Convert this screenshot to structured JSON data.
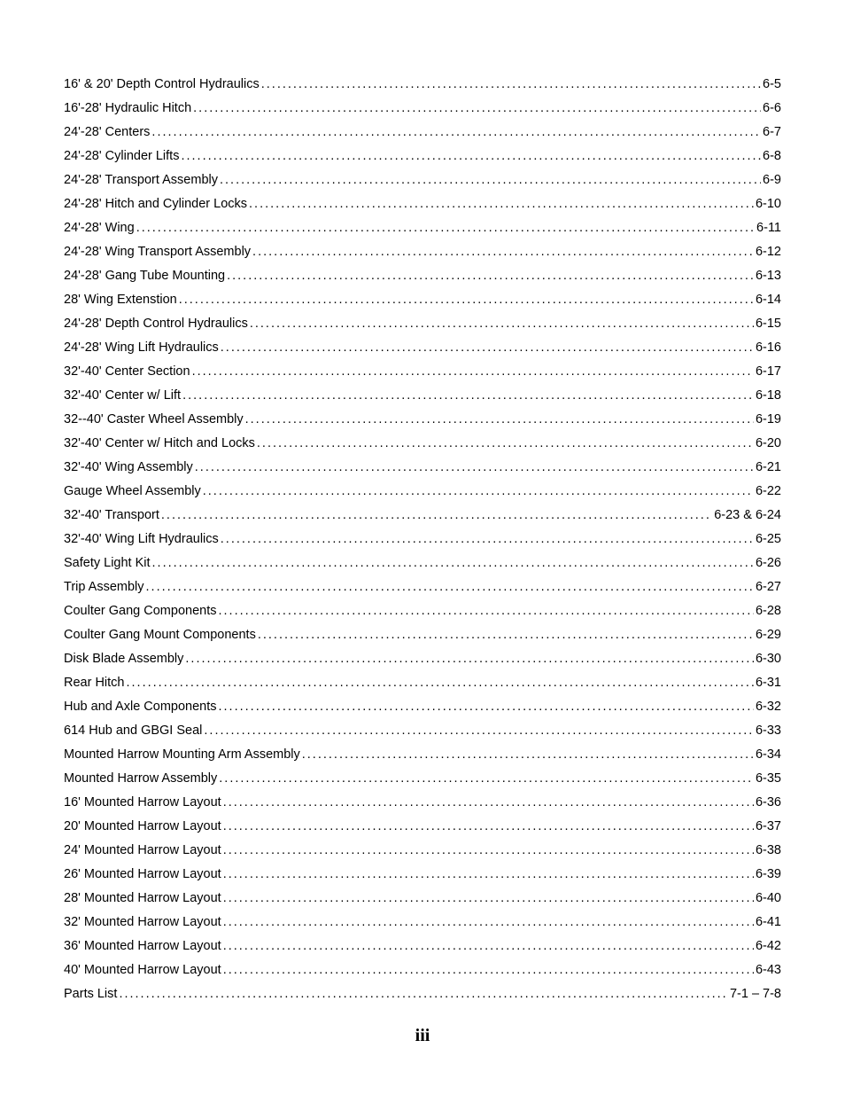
{
  "toc": {
    "entries": [
      {
        "title": "16' & 20' Depth Control Hydraulics",
        "page": "6-5"
      },
      {
        "title": "16'-28' Hydraulic Hitch",
        "page": "6-6"
      },
      {
        "title": "24'-28' Centers",
        "page": "6-7"
      },
      {
        "title": "24'-28' Cylinder Lifts",
        "page": "6-8"
      },
      {
        "title": "24'-28' Transport Assembly",
        "page": "6-9"
      },
      {
        "title": "24'-28' Hitch and Cylinder Locks",
        "page": "6-10"
      },
      {
        "title": "24'-28' Wing",
        "page": "6-11"
      },
      {
        "title": "24'-28' Wing Transport Assembly",
        "page": "6-12"
      },
      {
        "title": "24'-28' Gang Tube Mounting",
        "page": "6-13"
      },
      {
        "title": "28' Wing Extenstion",
        "page": "6-14"
      },
      {
        "title": "24'-28' Depth Control Hydraulics",
        "page": "6-15"
      },
      {
        "title": "24'-28' Wing Lift Hydraulics",
        "page": "6-16"
      },
      {
        "title": "32'-40' Center Section",
        "page": "6-17"
      },
      {
        "title": "32'-40' Center w/ Lift",
        "page": "6-18"
      },
      {
        "title": "32--40' Caster Wheel Assembly",
        "page": "6-19"
      },
      {
        "title": "32'-40' Center w/ Hitch and Locks",
        "page": "6-20"
      },
      {
        "title": "32'-40' Wing Assembly",
        "page": "6-21"
      },
      {
        "title": "Gauge Wheel Assembly",
        "page": "6-22"
      },
      {
        "title": "32'-40' Transport",
        "page": "6-23 & 6-24"
      },
      {
        "title": "32'-40' Wing Lift Hydraulics",
        "page": "6-25"
      },
      {
        "title": "Safety Light Kit",
        "page": "6-26"
      },
      {
        "title": "Trip Assembly",
        "page": "6-27"
      },
      {
        "title": "Coulter Gang Components",
        "page": "6-28"
      },
      {
        "title": "Coulter Gang Mount Components",
        "page": "6-29"
      },
      {
        "title": "Disk Blade Assembly",
        "page": "6-30"
      },
      {
        "title": "Rear Hitch",
        "page": "6-31"
      },
      {
        "title": "Hub and Axle Components",
        "page": "6-32"
      },
      {
        "title": "614 Hub and GBGI Seal",
        "page": "6-33"
      },
      {
        "title": "Mounted Harrow Mounting Arm Assembly",
        "page": "6-34"
      },
      {
        "title": "Mounted Harrow Assembly",
        "page": "6-35"
      },
      {
        "title": "16' Mounted Harrow Layout",
        "page": "6-36"
      },
      {
        "title": "20' Mounted Harrow Layout",
        "page": "6-37"
      },
      {
        "title": "24' Mounted Harrow Layout",
        "page": "6-38"
      },
      {
        "title": "26' Mounted Harrow Layout",
        "page": "6-39"
      },
      {
        "title": "28' Mounted Harrow Layout",
        "page": "6-40"
      },
      {
        "title": "32' Mounted Harrow Layout",
        "page": "6-41"
      },
      {
        "title": "36' Mounted Harrow Layout",
        "page": "6-42"
      },
      {
        "title": "40' Mounted Harrow Layout",
        "page": "6-43"
      },
      {
        "title": "Parts List",
        "page": "7-1 – 7-8"
      }
    ]
  },
  "footer": {
    "page_number": "iii"
  }
}
